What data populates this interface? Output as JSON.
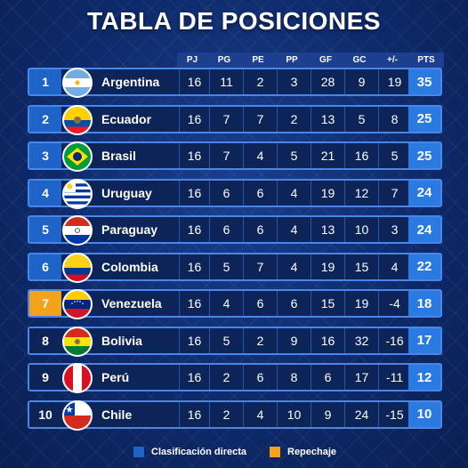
{
  "title": "TABLA DE POSICIONES",
  "columns": [
    "PJ",
    "PG",
    "PE",
    "PP",
    "GF",
    "GC",
    "+/-",
    "PTS"
  ],
  "rows": [
    {
      "pos": "1",
      "country": "Argentina",
      "flag": "argentina",
      "status": "directa",
      "stats": [
        "16",
        "11",
        "2",
        "3",
        "28",
        "9",
        "19"
      ],
      "pts": "35"
    },
    {
      "pos": "2",
      "country": "Ecuador",
      "flag": "ecuador",
      "status": "directa",
      "stats": [
        "16",
        "7",
        "7",
        "2",
        "13",
        "5",
        "8"
      ],
      "pts": "25"
    },
    {
      "pos": "3",
      "country": "Brasil",
      "flag": "brasil",
      "status": "directa",
      "stats": [
        "16",
        "7",
        "4",
        "5",
        "21",
        "16",
        "5"
      ],
      "pts": "25"
    },
    {
      "pos": "4",
      "country": "Uruguay",
      "flag": "uruguay",
      "status": "directa",
      "stats": [
        "16",
        "6",
        "6",
        "4",
        "19",
        "12",
        "7"
      ],
      "pts": "24"
    },
    {
      "pos": "5",
      "country": "Paraguay",
      "flag": "paraguay",
      "status": "directa",
      "stats": [
        "16",
        "6",
        "6",
        "4",
        "13",
        "10",
        "3"
      ],
      "pts": "24"
    },
    {
      "pos": "6",
      "country": "Colombia",
      "flag": "colombia",
      "status": "directa",
      "stats": [
        "16",
        "5",
        "7",
        "4",
        "19",
        "15",
        "4"
      ],
      "pts": "22"
    },
    {
      "pos": "7",
      "country": "Venezuela",
      "flag": "venezuela",
      "status": "repechaje",
      "stats": [
        "16",
        "4",
        "6",
        "6",
        "15",
        "19",
        "-4"
      ],
      "pts": "18"
    },
    {
      "pos": "8",
      "country": "Bolivia",
      "flag": "bolivia",
      "status": "none",
      "stats": [
        "16",
        "5",
        "2",
        "9",
        "16",
        "32",
        "-16"
      ],
      "pts": "17"
    },
    {
      "pos": "9",
      "country": "Perú",
      "flag": "peru",
      "status": "none",
      "stats": [
        "16",
        "2",
        "6",
        "8",
        "6",
        "17",
        "-11"
      ],
      "pts": "12"
    },
    {
      "pos": "10",
      "country": "Chile",
      "flag": "chile",
      "status": "none",
      "stats": [
        "16",
        "2",
        "4",
        "10",
        "9",
        "24",
        "-15"
      ],
      "pts": "10"
    }
  ],
  "legend": {
    "directa_label": "Clasificación directa",
    "repechaje_label": "Repechaje",
    "directa_color": "#1e63c8",
    "repechaje_color": "#f2a21b"
  }
}
